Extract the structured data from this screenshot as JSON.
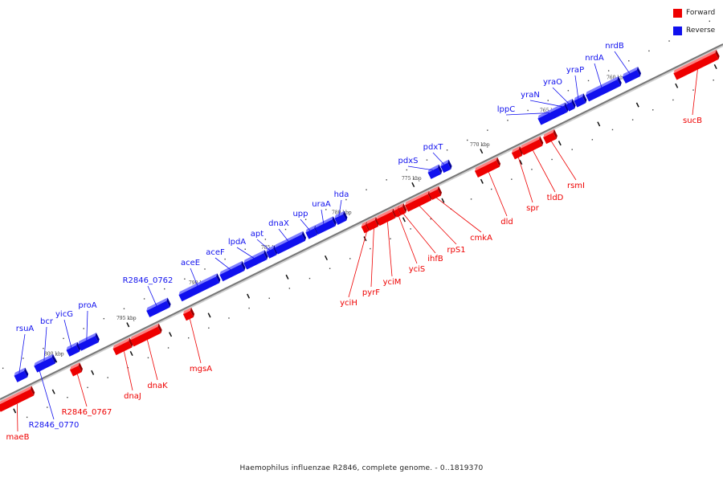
{
  "caption": "Haemophilus influenzae R2846, complete genome. - 0..1819370",
  "legend": [
    {
      "label": "Forward",
      "color": "#ee0000"
    },
    {
      "label": "Reverse",
      "color": "#1010ee"
    }
  ],
  "colors": {
    "forward": "#ee0000",
    "reverse": "#1010ee",
    "axis": "#888888"
  },
  "ticks": [
    {
      "label": "800 kbp"
    },
    {
      "label": "795 kbp"
    },
    {
      "label": "790 kbp"
    },
    {
      "label": "785 kbp"
    },
    {
      "label": "780 kbp"
    },
    {
      "label": "775 kbp"
    },
    {
      "label": "770 kbp"
    },
    {
      "label": "765 kbp"
    },
    {
      "label": "760 kbp"
    }
  ],
  "genes": [
    {
      "name": "maeB",
      "strand": "forward"
    },
    {
      "name": "R2846_0770",
      "strand": "reverse"
    },
    {
      "name": "rsuA",
      "strand": "reverse"
    },
    {
      "name": "bcr",
      "strand": "reverse"
    },
    {
      "name": "yicG",
      "strand": "reverse"
    },
    {
      "name": "proA",
      "strand": "reverse"
    },
    {
      "name": "R2846_0767",
      "strand": "forward"
    },
    {
      "name": "dnaJ",
      "strand": "forward"
    },
    {
      "name": "dnaK",
      "strand": "forward"
    },
    {
      "name": "R2846_0762",
      "strand": "reverse"
    },
    {
      "name": "mgsA",
      "strand": "forward"
    },
    {
      "name": "aceE",
      "strand": "reverse"
    },
    {
      "name": "aceF",
      "strand": "reverse"
    },
    {
      "name": "lpdA",
      "strand": "reverse"
    },
    {
      "name": "apt",
      "strand": "reverse"
    },
    {
      "name": "dnaX",
      "strand": "reverse"
    },
    {
      "name": "upp",
      "strand": "reverse"
    },
    {
      "name": "uraA",
      "strand": "reverse"
    },
    {
      "name": "hda",
      "strand": "reverse"
    },
    {
      "name": "yciH",
      "strand": "forward"
    },
    {
      "name": "pyrF",
      "strand": "forward"
    },
    {
      "name": "yciM",
      "strand": "forward"
    },
    {
      "name": "yciS",
      "strand": "forward"
    },
    {
      "name": "ihfB",
      "strand": "forward"
    },
    {
      "name": "rpS1",
      "strand": "forward"
    },
    {
      "name": "cmkA",
      "strand": "forward"
    },
    {
      "name": "pdxS",
      "strand": "reverse"
    },
    {
      "name": "pdxT",
      "strand": "reverse"
    },
    {
      "name": "dld",
      "strand": "forward"
    },
    {
      "name": "spr",
      "strand": "forward"
    },
    {
      "name": "tldD",
      "strand": "forward"
    },
    {
      "name": "rsmI",
      "strand": "forward"
    },
    {
      "name": "lppC",
      "strand": "reverse"
    },
    {
      "name": "yraN",
      "strand": "reverse"
    },
    {
      "name": "yraO",
      "strand": "reverse"
    },
    {
      "name": "yraP",
      "strand": "reverse"
    },
    {
      "name": "nrdA",
      "strand": "reverse"
    },
    {
      "name": "nrdB",
      "strand": "reverse"
    },
    {
      "name": "sucB",
      "strand": "forward"
    }
  ]
}
